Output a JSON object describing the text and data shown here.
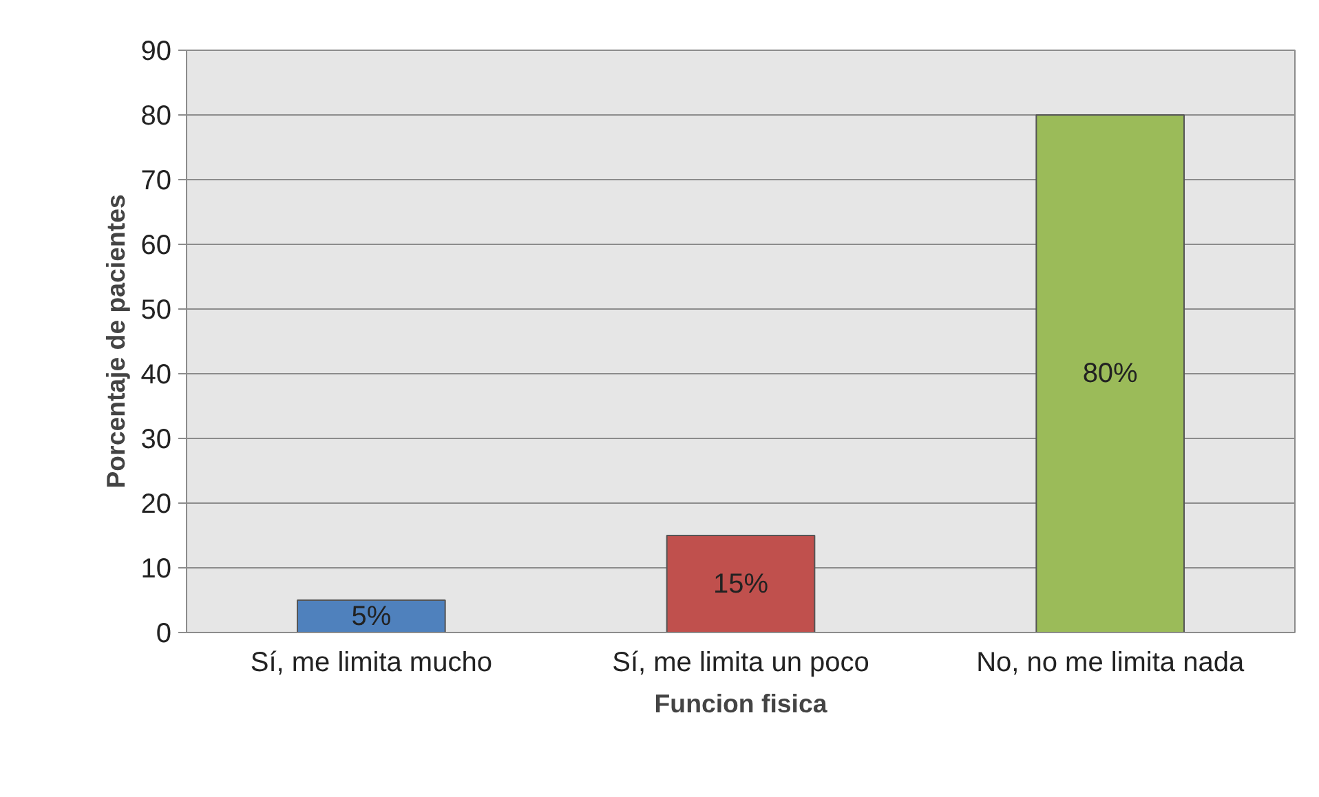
{
  "chart_data": {
    "type": "bar",
    "xlabel": "Funcion fisica",
    "ylabel": "Porcentaje de pacientes",
    "categories": [
      "Sí, me limita mucho",
      "Sí, me limita un poco",
      "No, no me limita nada"
    ],
    "values": [
      5,
      15,
      80
    ],
    "colors": [
      "#4f81bd",
      "#c0504d",
      "#9bbb59"
    ],
    "value_labels": [
      "5%",
      "15%",
      "80%"
    ],
    "ylim": [
      0,
      90
    ],
    "yticks": [
      0,
      10,
      20,
      30,
      40,
      50,
      60,
      70,
      80,
      90
    ],
    "grid": "y"
  }
}
